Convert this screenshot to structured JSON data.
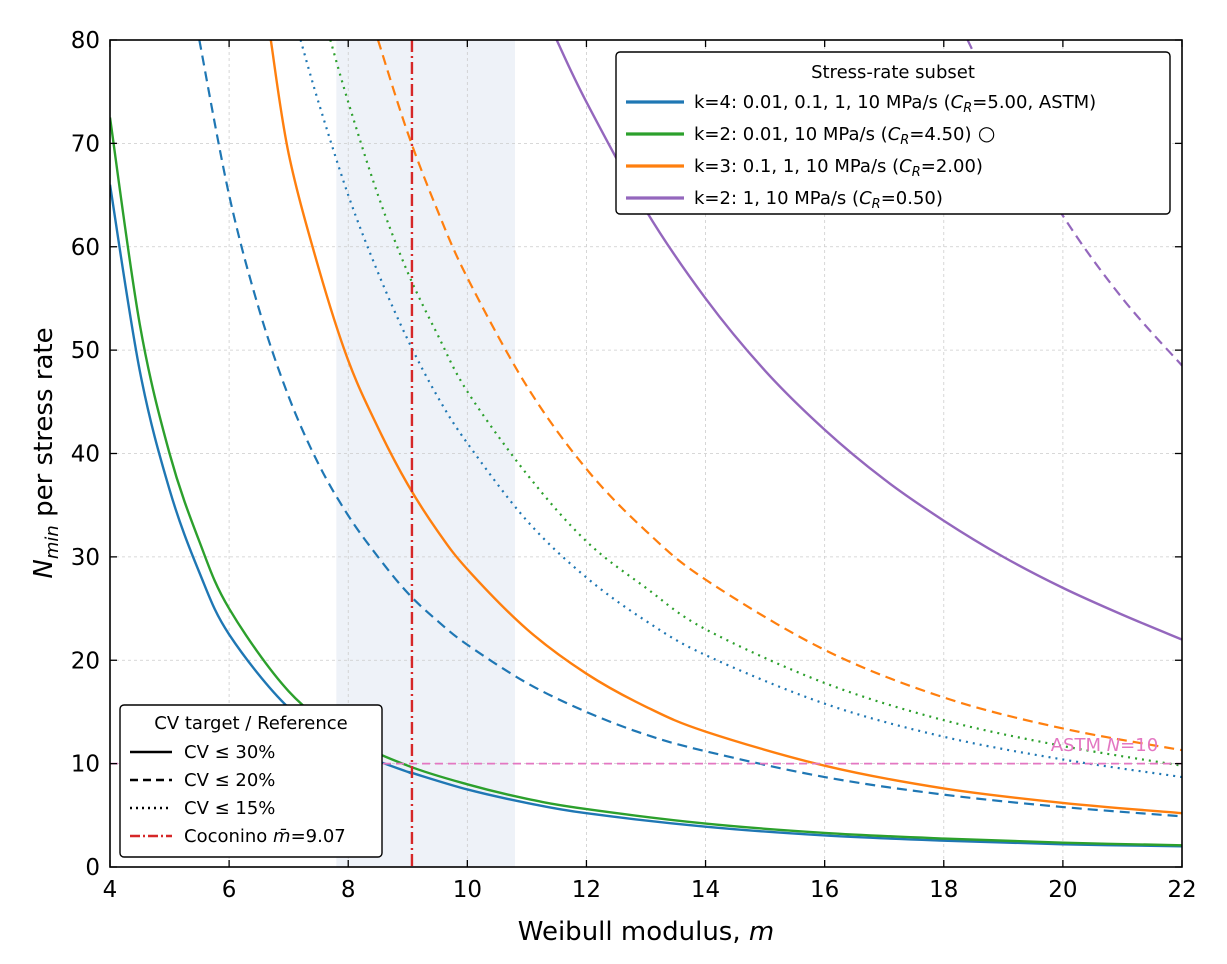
{
  "chart_data": {
    "type": "line",
    "xlabel": {
      "main": "Weibull modulus, ",
      "var": "m"
    },
    "ylabel": {
      "var": "N",
      "sub": "min",
      "rest": " per stress rate"
    },
    "xlim": [
      4,
      22
    ],
    "ylim": [
      0,
      80
    ],
    "xticks": [
      4,
      6,
      8,
      10,
      12,
      14,
      16,
      18,
      20,
      22
    ],
    "yticks": [
      0,
      10,
      20,
      30,
      40,
      50,
      60,
      70,
      80
    ],
    "grid": true,
    "shaded_band": {
      "x_from": 7.8,
      "x_to": 10.8,
      "color": "#eef2f8"
    },
    "reference_line_x": {
      "x": 9.07,
      "color": "#d62728",
      "style": "dashdot"
    },
    "reference_line_y": {
      "y": 10,
      "color": "#e377c2",
      "style": "dashed"
    },
    "annotation": {
      "prefix": "ASTM ",
      "var": "N",
      "suffix": "=10",
      "x": 21.6,
      "y": 11.2,
      "color": "#e377c2"
    },
    "colors": {
      "blue": "#1f77b4",
      "green": "#2ca02c",
      "orange": "#ff7f0e",
      "purple": "#9467bd"
    },
    "series": [
      {
        "group": "k4",
        "cv": "30",
        "style": "solid",
        "color": "#1f77b4",
        "points": [
          [
            4,
            66
          ],
          [
            4.5,
            48
          ],
          [
            5,
            36.5
          ],
          [
            5.5,
            28.5
          ],
          [
            6,
            22.5
          ],
          [
            7,
            15.4
          ],
          [
            8,
            11.5
          ],
          [
            9,
            9.2
          ],
          [
            9.07,
            9.1
          ],
          [
            10,
            7.5
          ],
          [
            11,
            6.2
          ],
          [
            12,
            5.2
          ],
          [
            14,
            3.9
          ],
          [
            16,
            3.05
          ],
          [
            18,
            2.55
          ],
          [
            20,
            2.2
          ],
          [
            22,
            2.0
          ]
        ]
      },
      {
        "group": "k4",
        "cv": "20",
        "style": "dashed",
        "color": "#1f77b4",
        "points": [
          [
            5.5,
            80
          ],
          [
            6,
            65
          ],
          [
            6.5,
            54
          ],
          [
            7,
            45.5
          ],
          [
            7.5,
            39
          ],
          [
            8,
            34
          ],
          [
            8.5,
            30
          ],
          [
            9,
            26.5
          ],
          [
            9.5,
            23.8
          ],
          [
            10,
            21.5
          ],
          [
            11,
            17.8
          ],
          [
            12,
            15
          ],
          [
            13,
            12.8
          ],
          [
            14,
            11.2
          ],
          [
            16,
            8.7
          ],
          [
            18,
            7
          ],
          [
            20,
            5.8
          ],
          [
            22,
            4.9
          ]
        ]
      },
      {
        "group": "k4",
        "cv": "15",
        "style": "dotted",
        "color": "#1f77b4",
        "points": [
          [
            7.2,
            80
          ],
          [
            7.5,
            74
          ],
          [
            8,
            65
          ],
          [
            8.5,
            57.5
          ],
          [
            9,
            51
          ],
          [
            9.5,
            45.5
          ],
          [
            10,
            41
          ],
          [
            11,
            33.5
          ],
          [
            12,
            28
          ],
          [
            13,
            23.8
          ],
          [
            14,
            20.5
          ],
          [
            16,
            15.8
          ],
          [
            18,
            12.6
          ],
          [
            20,
            10.4
          ],
          [
            22,
            8.7
          ]
        ]
      },
      {
        "group": "k2a",
        "cv": "30",
        "style": "solid",
        "color": "#2ca02c",
        "points": [
          [
            4,
            72.5
          ],
          [
            4.5,
            52.5
          ],
          [
            5,
            40
          ],
          [
            5.5,
            31.5
          ],
          [
            6,
            25
          ],
          [
            7,
            17
          ],
          [
            8,
            12.5
          ],
          [
            9,
            9.8
          ],
          [
            10,
            8
          ],
          [
            11,
            6.6
          ],
          [
            12,
            5.6
          ],
          [
            14,
            4.2
          ],
          [
            16,
            3.3
          ],
          [
            18,
            2.75
          ],
          [
            20,
            2.35
          ],
          [
            22,
            2.1
          ]
        ]
      },
      {
        "group": "k2a",
        "cv": "15",
        "style": "dotted",
        "color": "#2ca02c",
        "points": [
          [
            7.7,
            80
          ],
          [
            8,
            74
          ],
          [
            8.5,
            65
          ],
          [
            9,
            57.5
          ],
          [
            9.5,
            51.5
          ],
          [
            10,
            46
          ],
          [
            11,
            38
          ],
          [
            12,
            31.5
          ],
          [
            13,
            27
          ],
          [
            14,
            23
          ],
          [
            16,
            17.8
          ],
          [
            18,
            14.2
          ],
          [
            20,
            11.7
          ],
          [
            22,
            9.8
          ]
        ]
      },
      {
        "group": "k3",
        "cv": "30",
        "style": "solid",
        "color": "#ff7f0e",
        "points": [
          [
            6.7,
            80
          ],
          [
            7,
            69
          ],
          [
            7.5,
            58
          ],
          [
            8,
            49
          ],
          [
            8.5,
            42.5
          ],
          [
            9,
            37
          ],
          [
            9.5,
            32.5
          ],
          [
            10,
            28.8
          ],
          [
            11,
            23
          ],
          [
            12,
            18.7
          ],
          [
            13,
            15.5
          ],
          [
            14,
            13.1
          ],
          [
            16,
            9.8
          ],
          [
            18,
            7.6
          ],
          [
            20,
            6.2
          ],
          [
            22,
            5.2
          ]
        ]
      },
      {
        "group": "k3",
        "cv": "20",
        "style": "dashed",
        "color": "#ff7f0e",
        "points": [
          [
            8.5,
            80
          ],
          [
            9,
            71
          ],
          [
            9.5,
            63.5
          ],
          [
            10,
            57
          ],
          [
            11,
            46.5
          ],
          [
            12,
            38.5
          ],
          [
            13,
            32.5
          ],
          [
            14,
            27.8
          ],
          [
            16,
            21
          ],
          [
            18,
            16.4
          ],
          [
            20,
            13.4
          ],
          [
            22,
            11.3
          ]
        ]
      },
      {
        "group": "k2b",
        "cv": "30",
        "style": "solid",
        "color": "#9467bd",
        "points": [
          [
            11.5,
            80
          ],
          [
            12,
            74
          ],
          [
            13,
            63.5
          ],
          [
            14,
            55
          ],
          [
            15,
            48
          ],
          [
            16,
            42.3
          ],
          [
            17,
            37.5
          ],
          [
            18,
            33.5
          ],
          [
            19,
            30
          ],
          [
            20,
            27
          ],
          [
            21,
            24.4
          ],
          [
            22,
            22
          ]
        ]
      },
      {
        "group": "k2b",
        "cv": "20",
        "style": "dashed",
        "color": "#9467bd",
        "points": [
          [
            18.4,
            80
          ],
          [
            19,
            73
          ],
          [
            20,
            63
          ],
          [
            21,
            55
          ],
          [
            22,
            48.5
          ]
        ]
      }
    ],
    "legend_main": {
      "position": "top-right",
      "title": "Stress-rate subset",
      "entries": [
        {
          "text_a": "k=4: 0.01, 0.1, 1, 10 MPa/s  (",
          "sym": "C",
          "sub": "R",
          "text_b": "=5.00, ASTM)",
          "color": "#1f77b4",
          "marker": ""
        },
        {
          "text_a": "k=2: 0.01, 10 MPa/s  (",
          "sym": "C",
          "sub": "R",
          "text_b": "=4.50)",
          "color": "#2ca02c",
          "marker": "○"
        },
        {
          "text_a": "k=3: 0.1, 1, 10 MPa/s  (",
          "sym": "C",
          "sub": "R",
          "text_b": "=2.00)",
          "color": "#ff7f0e",
          "marker": ""
        },
        {
          "text_a": "k=2: 1, 10 MPa/s  (",
          "sym": "C",
          "sub": "R",
          "text_b": "=0.50)",
          "color": "#9467bd",
          "marker": ""
        }
      ]
    },
    "legend_cv": {
      "position": "bottom-left",
      "title": "CV target / Reference",
      "entries": [
        {
          "text": "CV ≤ 30%",
          "style": "solid",
          "color": "#000000"
        },
        {
          "text": "CV ≤ 20%",
          "style": "dashed",
          "color": "#000000"
        },
        {
          "text": "CV ≤ 15%",
          "style": "dotted",
          "color": "#000000"
        },
        {
          "text_a": "Coconino ",
          "sym": "m̄",
          "text_b": "=9.07",
          "style": "dashdot",
          "color": "#d62728"
        }
      ]
    }
  }
}
